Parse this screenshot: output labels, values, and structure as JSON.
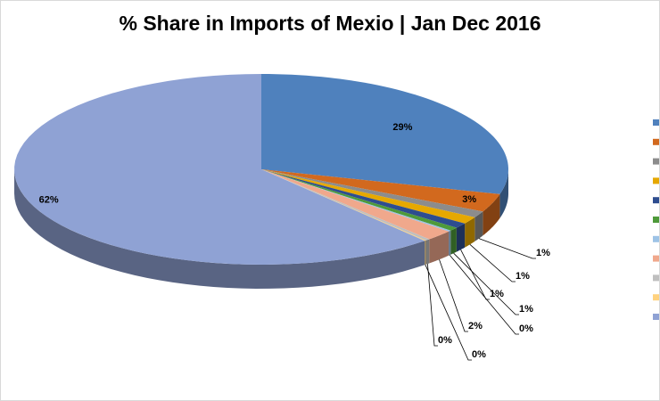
{
  "chart_data": {
    "type": "pie3d",
    "title": "% Share in Imports of Mexio | Jan Dec 2016",
    "categories": [
      null,
      null,
      null,
      null,
      null,
      null,
      null,
      null,
      null,
      null,
      null
    ],
    "values": [
      29.2,
      3.1,
      1.1,
      1.2,
      0.9,
      0.6,
      0.2,
      1.8,
      0.3,
      0.1,
      61.5
    ],
    "value_labels": [
      "29%",
      "3%",
      "1%",
      "1%",
      "1%",
      "1%",
      "0%",
      "2%",
      "0%",
      "0%",
      "62%"
    ],
    "colors": [
      "#4f81bd",
      "#d2691e",
      "#8c8c8c",
      "#e6a800",
      "#2e4d8f",
      "#4e9a3a",
      "#9dc3e6",
      "#f0a88c",
      "#bfbfbf",
      "#ffd27f",
      "#8fa2d4"
    ]
  }
}
